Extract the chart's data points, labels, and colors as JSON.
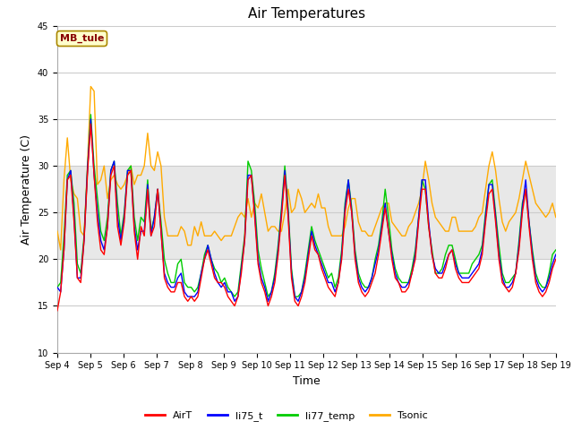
{
  "title": "Air Temperatures",
  "xlabel": "Time",
  "ylabel": "Air Temperature (C)",
  "ylim": [
    10,
    45
  ],
  "xlim_start": 0,
  "xlim_end": 15,
  "x_tick_labels": [
    "Sep 4",
    "Sep 5",
    "Sep 6",
    "Sep 7",
    "Sep 8",
    "Sep 9",
    "Sep 10",
    "Sep 11",
    "Sep 12",
    "Sep 13",
    "Sep 14",
    "Sep 15",
    "Sep 16",
    "Sep 17",
    "Sep 18",
    "Sep 19"
  ],
  "shaded_band": [
    20,
    30
  ],
  "shaded_color": "#e8e8e8",
  "legend_entries": [
    "AirT",
    "li75_t",
    "li77_temp",
    "Tsonic"
  ],
  "legend_colors": [
    "#ff0000",
    "#0000ff",
    "#00cc00",
    "#ffaa00"
  ],
  "annotation_text": "MB_tule",
  "annotation_bg": "#ffffcc",
  "annotation_border": "#aa8800",
  "annotation_text_color": "#880000",
  "background_color": "#ffffff",
  "plot_bg": "#ffffff",
  "grid_color": "#cccccc",
  "title_fontsize": 11,
  "axis_label_fontsize": 9,
  "tick_fontsize": 7,
  "linewidth": 1.0,
  "airt": [
    14.5,
    16.5,
    21.0,
    28.5,
    29.0,
    24.0,
    18.0,
    17.5,
    22.0,
    29.0,
    34.5,
    29.0,
    24.0,
    21.0,
    20.5,
    23.5,
    29.0,
    30.0,
    23.5,
    21.5,
    24.0,
    29.0,
    29.5,
    23.0,
    20.0,
    23.5,
    22.5,
    27.5,
    22.5,
    23.5,
    27.5,
    23.0,
    18.0,
    17.0,
    16.5,
    16.5,
    17.5,
    17.5,
    16.0,
    15.5,
    16.0,
    15.5,
    16.0,
    18.0,
    20.0,
    21.0,
    19.5,
    18.0,
    17.5,
    17.5,
    17.0,
    16.0,
    15.5,
    15.0,
    16.0,
    18.5,
    22.0,
    28.5,
    29.0,
    24.5,
    19.5,
    17.5,
    16.5,
    15.0,
    16.0,
    17.5,
    20.5,
    24.5,
    29.0,
    24.5,
    18.0,
    15.5,
    15.0,
    16.0,
    17.5,
    20.0,
    22.5,
    21.0,
    20.5,
    19.0,
    18.0,
    17.0,
    16.5,
    16.0,
    17.5,
    20.0,
    25.0,
    27.5,
    25.0,
    20.0,
    17.5,
    16.5,
    16.0,
    16.5,
    17.5,
    18.5,
    20.5,
    23.0,
    25.5,
    23.0,
    20.0,
    18.0,
    17.5,
    16.5,
    16.5,
    17.0,
    18.5,
    20.0,
    24.0,
    27.5,
    27.5,
    23.5,
    20.5,
    18.5,
    18.0,
    18.0,
    19.0,
    20.5,
    21.0,
    19.0,
    18.0,
    17.5,
    17.5,
    17.5,
    18.0,
    18.5,
    19.0,
    20.5,
    24.0,
    27.0,
    27.5,
    24.0,
    20.0,
    17.5,
    17.0,
    16.5,
    17.0,
    18.5,
    21.0,
    25.0,
    27.5,
    23.5,
    20.0,
    17.5,
    16.5,
    16.0,
    16.5,
    17.5,
    19.0,
    20.0
  ],
  "li75_t": [
    17.0,
    16.5,
    21.0,
    28.5,
    29.5,
    24.5,
    18.0,
    18.0,
    22.0,
    29.5,
    35.0,
    29.0,
    25.0,
    22.0,
    21.0,
    23.5,
    29.5,
    30.5,
    24.5,
    22.0,
    24.5,
    29.5,
    29.5,
    23.5,
    21.0,
    23.0,
    23.0,
    28.0,
    22.5,
    24.5,
    27.5,
    23.0,
    18.5,
    17.5,
    17.0,
    17.0,
    18.0,
    18.5,
    16.5,
    16.0,
    16.0,
    16.0,
    16.5,
    18.5,
    20.0,
    21.5,
    20.0,
    18.5,
    17.5,
    17.0,
    17.5,
    16.5,
    16.5,
    15.5,
    16.0,
    19.0,
    22.0,
    29.0,
    29.0,
    25.0,
    20.0,
    18.0,
    17.0,
    15.5,
    16.5,
    18.0,
    21.0,
    25.0,
    29.5,
    25.0,
    18.5,
    16.0,
    15.5,
    16.5,
    18.0,
    20.5,
    23.0,
    21.5,
    20.5,
    19.5,
    18.5,
    17.5,
    17.5,
    16.5,
    17.5,
    20.5,
    25.5,
    28.5,
    25.0,
    20.5,
    18.0,
    17.0,
    16.5,
    17.0,
    18.0,
    19.5,
    21.0,
    23.5,
    26.0,
    23.0,
    20.5,
    18.5,
    17.5,
    17.0,
    17.0,
    17.5,
    18.5,
    20.5,
    24.5,
    28.5,
    28.5,
    24.0,
    20.5,
    19.0,
    18.5,
    18.5,
    19.5,
    20.5,
    21.0,
    19.5,
    18.5,
    18.0,
    18.0,
    18.0,
    18.5,
    19.0,
    19.5,
    21.0,
    24.5,
    28.0,
    28.0,
    24.5,
    20.5,
    18.0,
    17.0,
    17.0,
    17.5,
    18.5,
    21.5,
    25.5,
    28.5,
    24.0,
    20.5,
    18.0,
    17.0,
    16.5,
    17.0,
    18.0,
    19.5,
    20.5
  ],
  "li77_temp": [
    17.0,
    17.5,
    22.5,
    29.0,
    29.5,
    26.0,
    19.5,
    18.5,
    22.5,
    29.5,
    35.5,
    30.0,
    26.5,
    23.0,
    22.0,
    24.5,
    29.5,
    30.5,
    26.0,
    22.5,
    25.0,
    29.5,
    30.0,
    24.5,
    22.0,
    24.5,
    24.0,
    28.5,
    23.0,
    24.5,
    27.5,
    24.0,
    20.0,
    18.5,
    17.5,
    17.5,
    19.5,
    20.0,
    17.5,
    17.0,
    17.0,
    16.5,
    17.0,
    18.5,
    20.5,
    21.5,
    20.0,
    19.0,
    18.5,
    17.5,
    18.0,
    17.0,
    16.5,
    16.0,
    16.5,
    19.5,
    22.5,
    30.5,
    29.5,
    26.0,
    21.0,
    19.0,
    17.5,
    16.0,
    16.5,
    18.5,
    21.5,
    25.5,
    30.0,
    25.5,
    19.0,
    16.0,
    16.0,
    16.5,
    18.5,
    21.0,
    23.5,
    22.0,
    21.0,
    20.0,
    19.0,
    18.0,
    18.5,
    17.0,
    18.0,
    21.0,
    26.0,
    28.5,
    25.5,
    21.0,
    18.5,
    17.5,
    17.0,
    17.0,
    18.0,
    20.0,
    21.5,
    24.0,
    27.5,
    24.5,
    21.0,
    19.0,
    18.0,
    17.5,
    17.5,
    17.5,
    19.0,
    21.0,
    24.5,
    28.5,
    27.5,
    23.5,
    21.0,
    18.5,
    18.5,
    19.0,
    20.5,
    21.5,
    21.5,
    20.0,
    18.5,
    18.5,
    18.5,
    18.5,
    19.5,
    20.0,
    20.5,
    21.5,
    25.0,
    28.0,
    28.5,
    25.0,
    21.5,
    18.5,
    17.5,
    17.5,
    18.0,
    18.5,
    22.0,
    26.0,
    27.5,
    24.0,
    21.0,
    18.5,
    17.5,
    17.0,
    17.0,
    18.5,
    20.5,
    21.0
  ],
  "tsonic": [
    23.0,
    21.0,
    28.5,
    33.0,
    28.5,
    27.0,
    26.5,
    23.0,
    22.5,
    30.0,
    38.5,
    38.0,
    28.0,
    28.5,
    30.0,
    26.5,
    28.5,
    29.0,
    28.0,
    27.5,
    28.0,
    29.0,
    30.0,
    28.0,
    29.0,
    29.0,
    30.0,
    33.5,
    30.0,
    29.5,
    31.5,
    30.0,
    24.5,
    22.5,
    22.5,
    22.5,
    22.5,
    23.5,
    23.0,
    21.5,
    21.5,
    23.5,
    22.5,
    24.0,
    22.5,
    22.5,
    22.5,
    23.0,
    22.5,
    22.0,
    22.5,
    22.5,
    22.5,
    23.5,
    24.5,
    25.0,
    24.5,
    26.5,
    24.5,
    26.0,
    25.5,
    27.0,
    25.0,
    23.0,
    23.5,
    23.5,
    23.0,
    23.0,
    25.0,
    27.5,
    25.0,
    25.5,
    27.5,
    26.5,
    25.0,
    25.5,
    26.0,
    25.5,
    27.0,
    25.5,
    25.5,
    23.5,
    22.5,
    22.5,
    22.5,
    22.5,
    23.5,
    25.5,
    26.5,
    26.5,
    24.0,
    23.0,
    23.0,
    22.5,
    22.5,
    23.5,
    24.5,
    25.5,
    26.0,
    26.0,
    24.0,
    23.5,
    23.0,
    22.5,
    22.5,
    23.5,
    24.0,
    25.0,
    26.0,
    27.5,
    30.5,
    28.5,
    26.0,
    24.5,
    24.0,
    23.5,
    23.0,
    23.0,
    24.5,
    24.5,
    23.0,
    23.0,
    23.0,
    23.0,
    23.0,
    23.5,
    24.5,
    25.0,
    27.5,
    30.0,
    31.5,
    29.5,
    26.5,
    24.0,
    23.0,
    24.0,
    24.5,
    25.0,
    26.5,
    28.5,
    30.5,
    29.0,
    27.5,
    26.0,
    25.5,
    25.0,
    24.5,
    25.0,
    26.0,
    24.5
  ]
}
